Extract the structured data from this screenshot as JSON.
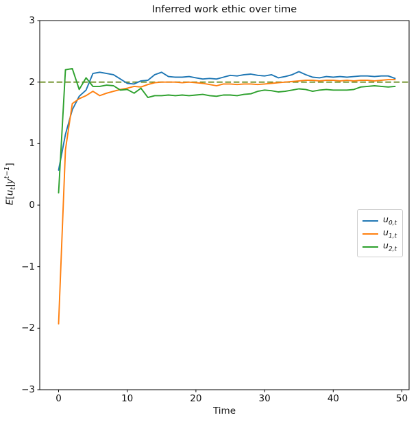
{
  "chart": {
    "title": "Inferred work ethic over time",
    "xlabel": "Time",
    "ylabel_parts": {
      "E": "E",
      "lbrack": "[",
      "u": "u",
      "usub": "t",
      "bar": "|",
      "y": "y",
      "ysup": "t−1",
      "rbrack": "]"
    }
  },
  "legend": {
    "items": [
      {
        "var": "u",
        "sub": "0,t"
      },
      {
        "var": "u",
        "sub": "1,t"
      },
      {
        "var": "u",
        "sub": "2,t"
      }
    ]
  },
  "chart_data": {
    "type": "line",
    "title": "Inferred work ethic over time",
    "xlabel": "Time",
    "ylabel": "E[u_t|y^(t-1)]",
    "xlim": [
      -2.7,
      51.1
    ],
    "ylim": [
      -3,
      3
    ],
    "x_ticks": [
      0,
      10,
      20,
      30,
      40,
      50
    ],
    "y_ticks": [
      -3,
      -2,
      -1,
      0,
      1,
      2,
      3
    ],
    "grid": false,
    "legend_position": "center right",
    "reference_line": {
      "value": 2.0,
      "style": "dashed",
      "color": "#6b8e23"
    },
    "x": [
      0,
      1,
      2,
      3,
      4,
      5,
      6,
      7,
      8,
      9,
      10,
      11,
      12,
      13,
      14,
      15,
      16,
      17,
      18,
      19,
      20,
      21,
      22,
      23,
      24,
      25,
      26,
      27,
      28,
      29,
      30,
      31,
      32,
      33,
      34,
      35,
      36,
      37,
      38,
      39,
      40,
      41,
      42,
      43,
      44,
      45,
      46,
      47,
      48,
      49
    ],
    "series": [
      {
        "name": "u_0,t",
        "color": "#1f77b4",
        "values": [
          0.57,
          1.15,
          1.55,
          1.77,
          1.87,
          2.14,
          2.16,
          2.14,
          2.12,
          2.05,
          1.98,
          1.97,
          2.02,
          2.03,
          2.12,
          2.16,
          2.09,
          2.08,
          2.08,
          2.09,
          2.07,
          2.05,
          2.06,
          2.05,
          2.08,
          2.11,
          2.1,
          2.12,
          2.13,
          2.11,
          2.1,
          2.12,
          2.07,
          2.09,
          2.12,
          2.17,
          2.12,
          2.08,
          2.07,
          2.09,
          2.08,
          2.09,
          2.08,
          2.09,
          2.1,
          2.1,
          2.09,
          2.1,
          2.1,
          2.06
        ]
      },
      {
        "name": "u_1,t",
        "color": "#ff7f0e",
        "values": [
          -1.93,
          0.9,
          1.65,
          1.73,
          1.78,
          1.85,
          1.78,
          1.82,
          1.85,
          1.88,
          1.9,
          1.93,
          1.92,
          1.96,
          1.99,
          2.0,
          2.0,
          2.0,
          1.99,
          2.0,
          1.99,
          1.98,
          1.96,
          1.94,
          1.97,
          1.97,
          1.96,
          1.97,
          1.97,
          1.96,
          1.97,
          1.98,
          1.99,
          2.0,
          2.01,
          2.02,
          2.03,
          2.03,
          2.02,
          2.03,
          2.03,
          2.02,
          2.03,
          2.02,
          2.03,
          2.03,
          2.02,
          2.03,
          2.04,
          2.04
        ]
      },
      {
        "name": "u_2,t",
        "color": "#2ca02c",
        "values": [
          0.2,
          2.2,
          2.22,
          1.88,
          2.07,
          1.93,
          1.93,
          1.95,
          1.94,
          1.87,
          1.88,
          1.82,
          1.9,
          1.75,
          1.78,
          1.78,
          1.79,
          1.78,
          1.79,
          1.78,
          1.79,
          1.8,
          1.78,
          1.77,
          1.79,
          1.79,
          1.78,
          1.8,
          1.81,
          1.85,
          1.87,
          1.86,
          1.84,
          1.85,
          1.87,
          1.89,
          1.88,
          1.85,
          1.87,
          1.88,
          1.87,
          1.87,
          1.87,
          1.88,
          1.92,
          1.93,
          1.94,
          1.93,
          1.92,
          1.93
        ]
      }
    ]
  }
}
